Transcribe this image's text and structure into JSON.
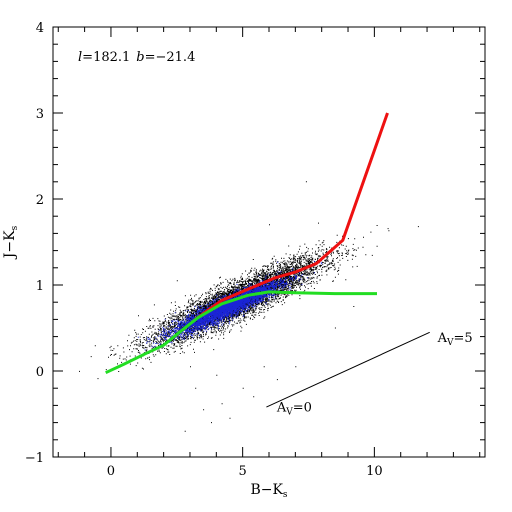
{
  "chart_data": {
    "type": "scatter",
    "title": "",
    "annotation_main": {
      "l_symbol": "l",
      "l_value": "=182.1",
      "b_symbol": "b",
      "b_value": "=−21.4"
    },
    "xlabel": {
      "main": "B−K",
      "sub": "s"
    },
    "ylabel": {
      "main": "J−K",
      "sub": "s"
    },
    "xlim": [
      -2.2,
      14.2
    ],
    "ylim": [
      -1,
      4
    ],
    "xticks_major": [
      0,
      5,
      10
    ],
    "xticks_minor_step": 1,
    "yticks_major": [
      -1,
      0,
      1,
      2,
      3,
      4
    ],
    "yticks_minor_step": 0.2,
    "xtick_labels": [
      "0",
      "5",
      "10"
    ],
    "ytick_labels": [
      "−1",
      "0",
      "1",
      "2",
      "3",
      "4"
    ],
    "grid": false,
    "series": [
      {
        "kind": "points",
        "color": "#000000",
        "distribution": {
          "center": [
            4.8,
            0.82
          ],
          "slope": 0.14,
          "spread_along": 1.6,
          "spread_across": 0.11,
          "count": 9000
        },
        "sparse_outliers": [
          [
            3.5,
            -0.45
          ],
          [
            4.2,
            -0.38
          ],
          [
            5.0,
            -0.2
          ],
          [
            6.3,
            -0.1
          ],
          [
            7.0,
            0.05
          ],
          [
            4.5,
            -0.55
          ],
          [
            2.8,
            -0.7
          ],
          [
            5.4,
            -0.3
          ],
          [
            3.2,
            -0.2
          ],
          [
            8.5,
            0.5
          ],
          [
            9.2,
            0.75
          ],
          [
            7.4,
            2.2
          ],
          [
            3.8,
            -0.6
          ],
          [
            6.0,
            1.7
          ],
          [
            1.5,
            0.1
          ],
          [
            2.5,
            1.05
          ],
          [
            8.0,
            1.45
          ],
          [
            5.8,
            0.05
          ],
          [
            4.0,
            -0.05
          ],
          [
            3.0,
            0.05
          ]
        ]
      },
      {
        "kind": "points",
        "color": "#1a24d6",
        "distribution": {
          "center": [
            4.4,
            0.74
          ],
          "slope": 0.14,
          "spread_along": 1.0,
          "spread_across": 0.06,
          "count": 4500
        }
      },
      {
        "kind": "line",
        "color": "#ee1111",
        "points": [
          [
            3.2,
            0.6
          ],
          [
            4.2,
            0.82
          ],
          [
            5.2,
            0.95
          ],
          [
            6.2,
            1.08
          ],
          [
            7.0,
            1.15
          ],
          [
            7.8,
            1.25
          ],
          [
            8.8,
            1.52
          ],
          [
            10.5,
            3.0
          ]
        ]
      },
      {
        "kind": "line",
        "color": "#22dd22",
        "points": [
          [
            -0.2,
            -0.02
          ],
          [
            0.5,
            0.08
          ],
          [
            1.3,
            0.2
          ],
          [
            2.0,
            0.3
          ],
          [
            2.6,
            0.45
          ],
          [
            3.3,
            0.62
          ],
          [
            4.2,
            0.78
          ],
          [
            5.2,
            0.88
          ],
          [
            6.0,
            0.92
          ],
          [
            7.0,
            0.91
          ],
          [
            8.5,
            0.9
          ],
          [
            10.1,
            0.9
          ]
        ]
      },
      {
        "kind": "reddening_vector",
        "color": "#000000",
        "points": [
          [
            5.9,
            -0.42
          ],
          [
            12.1,
            0.45
          ]
        ]
      }
    ],
    "annotations": [
      {
        "text_main": "A",
        "text_sub": "V",
        "text_tail": "=0",
        "x": 6.3,
        "y": -0.47
      },
      {
        "text_main": "A",
        "text_sub": "V",
        "text_tail": "=5",
        "x": 12.4,
        "y": 0.34
      }
    ]
  }
}
